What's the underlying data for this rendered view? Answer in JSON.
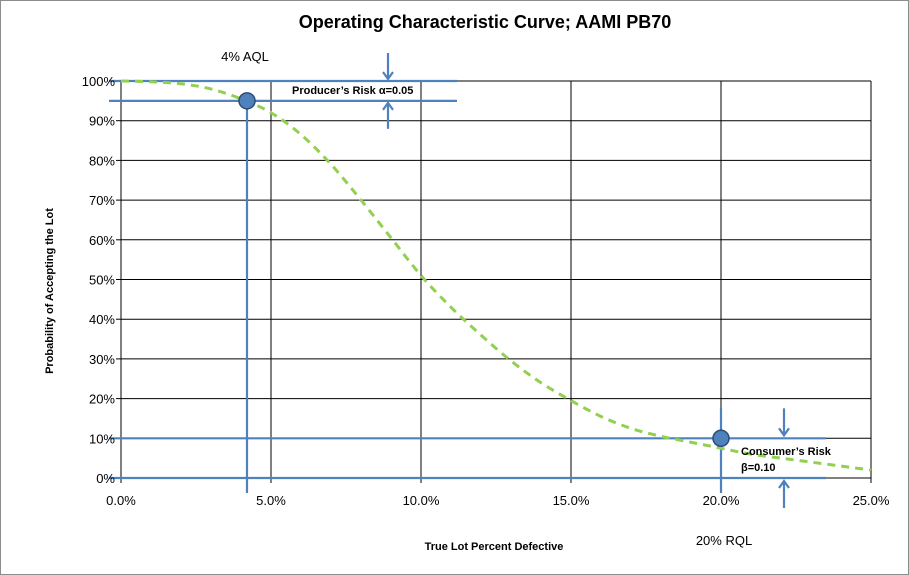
{
  "chart_data": {
    "type": "line",
    "title": "Operating Characteristic Curve; AAMI PB70",
    "xlabel": "True Lot Percent Defective",
    "ylabel": "Probability of Accepting the Lot",
    "xlim": [
      0,
      25
    ],
    "ylim": [
      0,
      100
    ],
    "x_ticks": [
      "0.0%",
      "5.0%",
      "10.0%",
      "15.0%",
      "20.0%",
      "25.0%"
    ],
    "y_ticks": [
      "0%",
      "10%",
      "20%",
      "30%",
      "40%",
      "50%",
      "60%",
      "70%",
      "80%",
      "90%",
      "100%"
    ],
    "grid": true,
    "series": [
      {
        "x": [
          0,
          1,
          2,
          3,
          4,
          5,
          6,
          7,
          8,
          9,
          10,
          11,
          12,
          13,
          14,
          15,
          16,
          17,
          18,
          19,
          20,
          21,
          22,
          23,
          24,
          25
        ],
        "values": [
          100,
          99.8,
          99.3,
          98,
          95.5,
          92,
          86.5,
          79,
          70,
          60.5,
          51,
          43,
          36,
          29.5,
          24,
          19.5,
          15.5,
          12.5,
          10.5,
          9,
          7.5,
          6,
          5,
          4,
          3,
          2
        ],
        "color": "#92d050",
        "style": "dashed"
      }
    ],
    "points": [
      {
        "x": 4.2,
        "y": 95,
        "color": "#4f81bd"
      },
      {
        "x": 20,
        "y": 10,
        "color": "#4f81bd"
      }
    ],
    "annotations": {
      "aql": "4% AQL",
      "rql": "20% RQL",
      "producer_risk": "Producer’s Risk α=0.05",
      "consumer_risk_line1": "Consumer’s Risk",
      "consumer_risk_line2": "β=0.10"
    },
    "guide_color": "#4f81bd"
  }
}
